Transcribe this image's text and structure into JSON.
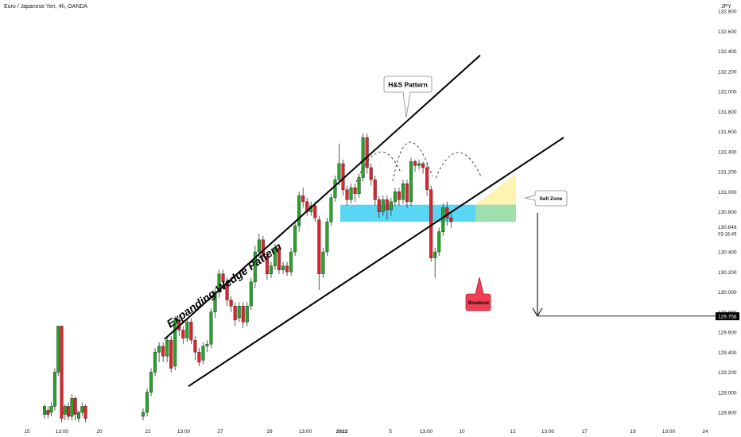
{
  "header": {
    "symbol": "Euro / Japanese Yen, 4h, OANDA",
    "currency": "JPY"
  },
  "colors": {
    "bull": "#26a629",
    "bear": "#e0242e",
    "blue_zone": "#5ad6f5",
    "yellow_zone": "#fff3b0",
    "green_zone": "#a6e0a6",
    "breakout": "#ee4054"
  },
  "chart_data": {
    "type": "candlestick",
    "title": "",
    "xlabel": "",
    "ylabel": "",
    "ylim": [
      128.7,
      132.9
    ],
    "y_ticks": [
      "132.800",
      "132.600",
      "132.400",
      "132.200",
      "132.000",
      "131.800",
      "131.600",
      "131.400",
      "131.200",
      "131.000",
      "130.800",
      "130.400",
      "130.200",
      "130.000",
      "129.800",
      "129.600",
      "129.400",
      "129.200",
      "129.000",
      "128.800"
    ],
    "x_ticks": [
      "15",
      "13:00",
      "20",
      "22",
      "13:00",
      "27",
      "29",
      "13:00",
      "2022",
      "5",
      "13:00",
      "10",
      "12",
      "13:00",
      "17",
      "19",
      "13:00",
      "24"
    ],
    "last_price": "130.648",
    "countdown": "03:16:49",
    "target_price": "129.758",
    "annotations": {
      "wedge": "Expanding Wedge Pattern",
      "hs": "H&S Pattern",
      "sell_zone": "Sell Zone",
      "breakout": "Breakout"
    },
    "candles": [
      [
        128.78,
        128.86,
        128.74,
        128.88
      ],
      [
        128.82,
        128.78,
        128.74,
        128.86
      ],
      [
        128.8,
        128.86,
        128.76,
        128.9
      ],
      [
        128.86,
        129.2,
        128.82,
        129.24
      ],
      [
        129.2,
        129.66,
        129.16,
        129.66
      ],
      [
        129.66,
        128.74,
        128.7,
        129.66
      ],
      [
        128.78,
        128.86,
        128.72,
        128.88
      ],
      [
        128.86,
        128.76,
        128.72,
        128.9
      ],
      [
        128.76,
        128.94,
        128.72,
        128.98
      ],
      [
        128.94,
        128.78,
        128.72,
        128.96
      ],
      [
        128.74,
        128.8,
        128.7,
        128.82
      ],
      [
        128.8,
        128.86,
        128.76,
        128.9
      ],
      [
        128.86,
        128.74,
        128.7,
        128.88
      ],
      [
        128.76,
        128.8,
        128.72,
        128.84
      ],
      [
        128.8,
        129.0,
        128.76,
        129.04
      ],
      [
        129.0,
        129.2,
        128.96,
        129.24
      ],
      [
        129.2,
        129.4,
        129.16,
        129.44
      ],
      [
        129.4,
        129.46,
        129.3,
        129.5
      ],
      [
        129.46,
        129.36,
        129.3,
        129.5
      ],
      [
        129.36,
        129.52,
        129.3,
        129.56
      ],
      [
        129.52,
        129.24,
        129.2,
        129.56
      ],
      [
        129.26,
        129.72,
        129.22,
        129.76
      ],
      [
        129.72,
        129.62,
        129.56,
        129.76
      ],
      [
        129.62,
        129.54,
        129.48,
        129.66
      ],
      [
        129.54,
        129.7,
        129.5,
        129.74
      ],
      [
        129.7,
        129.52,
        129.48,
        129.74
      ],
      [
        129.52,
        129.4,
        129.32,
        129.56
      ],
      [
        129.4,
        129.3,
        129.26,
        129.44
      ],
      [
        129.32,
        129.46,
        129.28,
        129.5
      ],
      [
        129.46,
        129.48,
        129.4,
        129.52
      ],
      [
        129.48,
        129.8,
        129.44,
        129.84
      ],
      [
        129.8,
        130.0,
        129.74,
        130.04
      ],
      [
        130.0,
        130.18,
        129.94,
        130.22
      ],
      [
        130.18,
        130.1,
        130.04,
        130.22
      ],
      [
        130.1,
        129.92,
        129.86,
        130.14
      ],
      [
        129.92,
        129.86,
        129.8,
        129.96
      ],
      [
        129.86,
        129.72,
        129.66,
        129.9
      ],
      [
        129.74,
        129.86,
        129.7,
        129.9
      ],
      [
        129.86,
        129.7,
        129.64,
        129.9
      ],
      [
        129.7,
        129.86,
        129.66,
        129.9
      ],
      [
        129.86,
        130.1,
        129.82,
        130.14
      ],
      [
        130.1,
        130.4,
        130.04,
        130.46
      ],
      [
        130.4,
        130.52,
        130.34,
        130.58
      ],
      [
        130.52,
        130.36,
        130.3,
        130.56
      ],
      [
        130.36,
        130.18,
        130.12,
        130.4
      ],
      [
        130.18,
        130.26,
        130.14,
        130.3
      ],
      [
        130.26,
        130.44,
        130.22,
        130.48
      ],
      [
        130.44,
        130.22,
        130.18,
        130.48
      ],
      [
        130.22,
        130.26,
        130.18,
        130.3
      ],
      [
        130.26,
        130.2,
        130.16,
        130.3
      ],
      [
        130.2,
        130.4,
        130.16,
        130.44
      ],
      [
        130.4,
        130.66,
        130.36,
        130.7
      ],
      [
        130.66,
        130.96,
        130.6,
        131.0
      ],
      [
        130.96,
        130.9,
        130.84,
        131.04
      ],
      [
        130.9,
        130.8,
        130.76,
        130.94
      ],
      [
        130.8,
        130.86,
        130.76,
        130.9
      ],
      [
        130.86,
        130.74,
        130.7,
        130.9
      ],
      [
        130.72,
        130.18,
        130.02,
        130.76
      ],
      [
        130.18,
        130.4,
        130.14,
        130.44
      ],
      [
        130.4,
        130.7,
        130.36,
        130.74
      ],
      [
        130.7,
        130.94,
        130.66,
        130.98
      ],
      [
        130.94,
        131.12,
        130.9,
        131.16
      ],
      [
        131.12,
        131.28,
        131.06,
        131.48
      ],
      [
        131.28,
        131.02,
        130.96,
        131.32
      ],
      [
        131.02,
        130.92,
        130.86,
        131.06
      ],
      [
        130.92,
        131.04,
        130.88,
        131.08
      ],
      [
        131.04,
        130.98,
        130.9,
        131.08
      ],
      [
        130.98,
        131.14,
        130.94,
        131.18
      ],
      [
        131.14,
        131.54,
        131.1,
        131.58
      ],
      [
        131.54,
        131.24,
        131.18,
        131.58
      ],
      [
        131.24,
        131.12,
        131.06,
        131.28
      ],
      [
        131.12,
        130.92,
        130.86,
        131.16
      ],
      [
        130.92,
        130.8,
        130.74,
        130.96
      ],
      [
        130.8,
        130.92,
        130.76,
        130.96
      ],
      [
        130.92,
        130.82,
        130.72,
        130.96
      ],
      [
        130.82,
        130.9,
        130.76,
        130.94
      ],
      [
        130.9,
        131.0,
        130.86,
        131.04
      ],
      [
        131.0,
        130.92,
        130.86,
        131.04
      ],
      [
        130.92,
        131.08,
        130.88,
        131.12
      ],
      [
        131.08,
        130.9,
        130.84,
        131.12
      ],
      [
        130.9,
        131.3,
        130.86,
        131.34
      ],
      [
        131.3,
        131.26,
        131.2,
        131.32
      ],
      [
        131.26,
        131.28,
        131.22,
        131.32
      ],
      [
        131.28,
        131.24,
        131.18,
        131.3
      ],
      [
        131.24,
        131.02,
        130.96,
        131.28
      ],
      [
        131.02,
        130.34,
        130.3,
        131.06
      ],
      [
        130.34,
        130.4,
        130.14,
        130.44
      ],
      [
        130.4,
        130.6,
        130.36,
        130.64
      ],
      [
        130.6,
        130.84,
        130.56,
        130.88
      ],
      [
        130.84,
        130.74,
        130.66,
        130.9
      ],
      [
        130.74,
        130.7,
        130.64,
        130.78
      ]
    ]
  }
}
